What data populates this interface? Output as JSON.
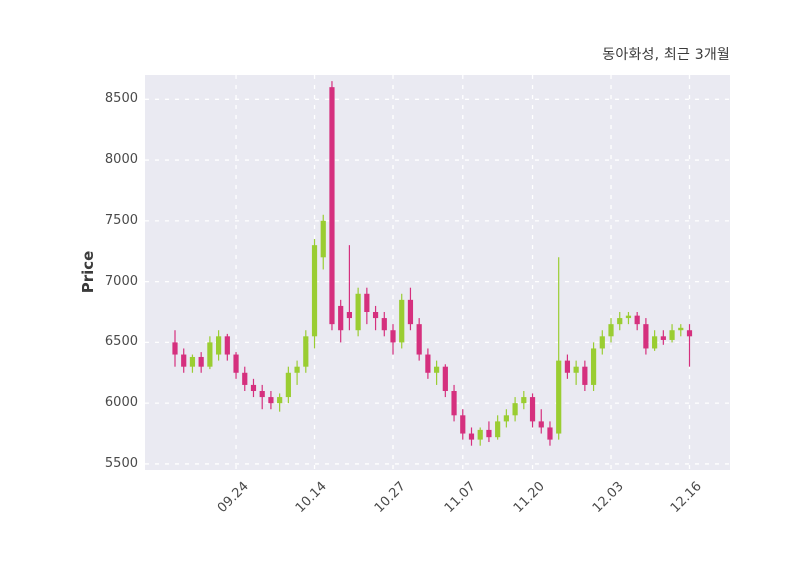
{
  "header": {
    "title": "동아화성, 최근 3개월"
  },
  "axes": {
    "y_label": "Price"
  },
  "chart_data": {
    "type": "candlestick",
    "title": "동아화성, 최근 3개월",
    "xlabel": "",
    "ylabel": "Price",
    "ylim": [
      5450,
      8700
    ],
    "y_ticks": [
      5500,
      6000,
      6500,
      7000,
      7500,
      8000,
      8500
    ],
    "x_ticks": [
      {
        "label": "09.24",
        "index": 7
      },
      {
        "label": "10.14",
        "index": 16
      },
      {
        "label": "10.27",
        "index": 25
      },
      {
        "label": "11.07",
        "index": 33
      },
      {
        "label": "11.20",
        "index": 41
      },
      {
        "label": "12.03",
        "index": 50
      },
      {
        "label": "12.16",
        "index": 59
      }
    ],
    "grid": "dashed",
    "legend": "none",
    "colors": {
      "up": "#9ACD32",
      "down": "#D5307E",
      "plot_background": "#EAEAF2",
      "grid": "#FFFFFF",
      "text": "#4A4A4A",
      "title_text": "#3A3A3A"
    },
    "candles_format": [
      "open",
      "high",
      "low",
      "close"
    ],
    "candles": [
      [
        6500,
        6600,
        6300,
        6400
      ],
      [
        6400,
        6450,
        6250,
        6300
      ],
      [
        6300,
        6400,
        6250,
        6380
      ],
      [
        6380,
        6420,
        6250,
        6300
      ],
      [
        6300,
        6550,
        6280,
        6500
      ],
      [
        6400,
        6600,
        6350,
        6550
      ],
      [
        6550,
        6570,
        6350,
        6400
      ],
      [
        6400,
        6420,
        6200,
        6250
      ],
      [
        6250,
        6300,
        6100,
        6150
      ],
      [
        6150,
        6200,
        6050,
        6100
      ],
      [
        6100,
        6150,
        5950,
        6050
      ],
      [
        6050,
        6100,
        5950,
        6000
      ],
      [
        6000,
        6080,
        5930,
        6050
      ],
      [
        6050,
        6300,
        6000,
        6250
      ],
      [
        6250,
        6350,
        6150,
        6300
      ],
      [
        6300,
        6600,
        6250,
        6550
      ],
      [
        6550,
        7350,
        6450,
        7300
      ],
      [
        7200,
        7550,
        7100,
        7500
      ],
      [
        8600,
        8650,
        6600,
        6650
      ],
      [
        6800,
        6850,
        6500,
        6600
      ],
      [
        6750,
        7300,
        6600,
        6700
      ],
      [
        6600,
        6950,
        6550,
        6900
      ],
      [
        6900,
        6950,
        6650,
        6750
      ],
      [
        6750,
        6800,
        6600,
        6700
      ],
      [
        6700,
        6750,
        6550,
        6600
      ],
      [
        6600,
        6650,
        6400,
        6500
      ],
      [
        6500,
        6900,
        6450,
        6850
      ],
      [
        6850,
        6950,
        6600,
        6650
      ],
      [
        6650,
        6700,
        6350,
        6400
      ],
      [
        6400,
        6450,
        6200,
        6250
      ],
      [
        6250,
        6350,
        6150,
        6300
      ],
      [
        6300,
        6320,
        6050,
        6100
      ],
      [
        6100,
        6150,
        5850,
        5900
      ],
      [
        5900,
        5950,
        5700,
        5750
      ],
      [
        5750,
        5800,
        5650,
        5700
      ],
      [
        5700,
        5800,
        5650,
        5780
      ],
      [
        5780,
        5850,
        5680,
        5720
      ],
      [
        5720,
        5900,
        5700,
        5850
      ],
      [
        5850,
        5950,
        5800,
        5900
      ],
      [
        5900,
        6050,
        5850,
        6000
      ],
      [
        6000,
        6100,
        5950,
        6050
      ],
      [
        6050,
        6080,
        5800,
        5850
      ],
      [
        5850,
        5950,
        5750,
        5800
      ],
      [
        5800,
        5850,
        5650,
        5700
      ],
      [
        5750,
        7200,
        5700,
        6350
      ],
      [
        6350,
        6400,
        6200,
        6250
      ],
      [
        6250,
        6350,
        6150,
        6300
      ],
      [
        6300,
        6350,
        6100,
        6150
      ],
      [
        6150,
        6500,
        6100,
        6450
      ],
      [
        6450,
        6600,
        6400,
        6550
      ],
      [
        6550,
        6700,
        6500,
        6650
      ],
      [
        6650,
        6750,
        6600,
        6700
      ],
      [
        6700,
        6750,
        6650,
        6720
      ],
      [
        6720,
        6750,
        6600,
        6650
      ],
      [
        6650,
        6700,
        6400,
        6450
      ],
      [
        6450,
        6600,
        6430,
        6550
      ],
      [
        6550,
        6600,
        6480,
        6520
      ],
      [
        6520,
        6650,
        6500,
        6600
      ],
      [
        6600,
        6650,
        6550,
        6620
      ],
      [
        6600,
        6650,
        6300,
        6550
      ]
    ]
  }
}
